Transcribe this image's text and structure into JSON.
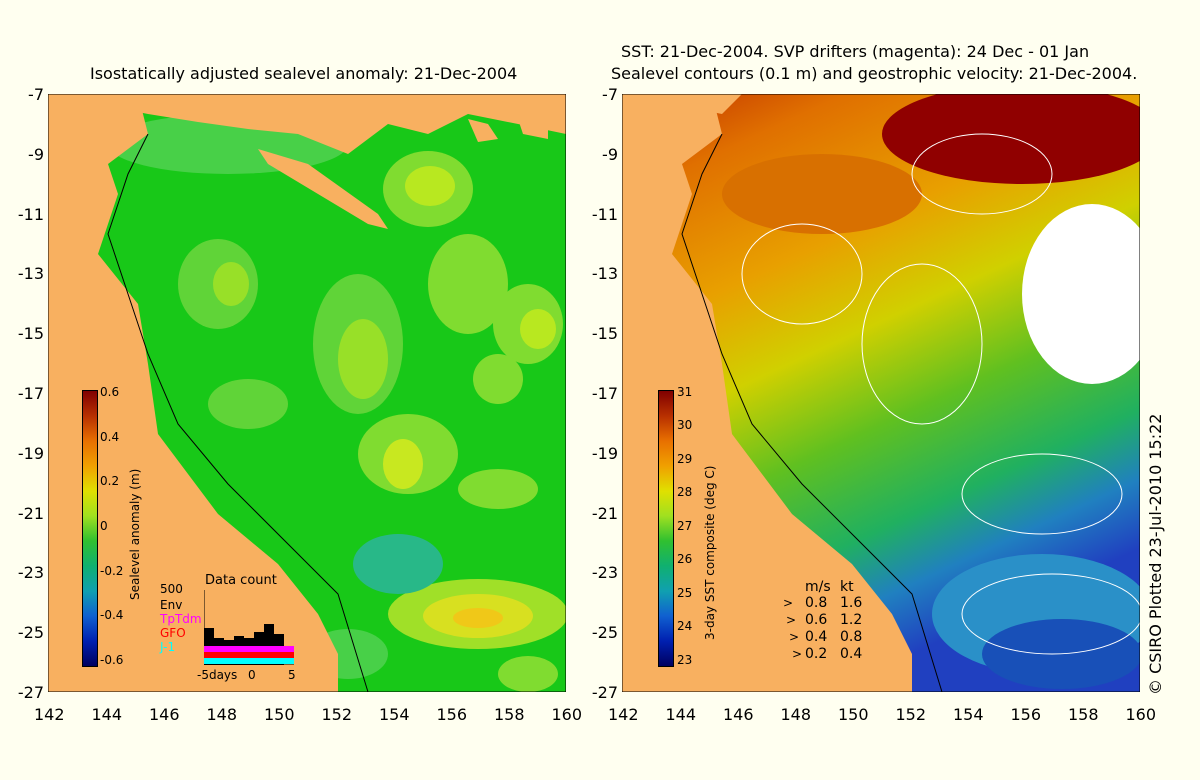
{
  "left_panel": {
    "title": "Isostatically adjusted sealevel anomaly: 21-Dec-2004",
    "y_ticks": [
      "-7",
      "-9",
      "-11",
      "-13",
      "-15",
      "-17",
      "-19",
      "-21",
      "-23",
      "-25",
      "-27"
    ],
    "x_ticks": [
      "142",
      "144",
      "146",
      "148",
      "150",
      "152",
      "154",
      "156",
      "158",
      "160"
    ],
    "colorbar": {
      "title": "Sealevel anomaly (m)",
      "labels": [
        "0.6",
        "0.4",
        "0.2",
        "0",
        "-0.2",
        "-0.4",
        "-0.6"
      ]
    },
    "data_count": {
      "title": "Data count",
      "scale_label": "500",
      "legend": [
        {
          "label": "Env",
          "color": "#000000"
        },
        {
          "label": "TpTdm",
          "color": "#ff00ff"
        },
        {
          "label": "GFO",
          "color": "#ff0000"
        },
        {
          "label": "J-1",
          "color": "#00ffff"
        }
      ],
      "x_label": "-5days",
      "x_ticks": [
        "0",
        "5"
      ]
    }
  },
  "right_panel": {
    "title_line1": "SST: 21-Dec-2004. SVP drifters (magenta): 24 Dec - 01 Jan",
    "title_line2": "Sealevel contours (0.1 m) and geostrophic velocity: 21-Dec-2004.",
    "y_ticks": [
      "-7",
      "-9",
      "-11",
      "-13",
      "-15",
      "-17",
      "-19",
      "-21",
      "-23",
      "-25",
      "-27"
    ],
    "x_ticks": [
      "142",
      "144",
      "146",
      "148",
      "150",
      "152",
      "154",
      "156",
      "158",
      "160"
    ],
    "colorbar": {
      "title": "3-day SST composite (deg C)",
      "labels": [
        "31",
        "30",
        "29",
        "28",
        "27",
        "26",
        "25",
        "24",
        "23"
      ]
    },
    "velocity_legend": {
      "header_ms": "m/s",
      "header_kt": "kt",
      "rows": [
        {
          "ms": "0.8",
          "kt": "1.6"
        },
        {
          "ms": "0.6",
          "kt": "1.2"
        },
        {
          "ms": "0.4",
          "kt": "0.8"
        },
        {
          "ms": "0.2",
          "kt": "0.4"
        }
      ]
    }
  },
  "credit": "© CSIRO Plotted 23-Jul-2010 15:22",
  "colors": {
    "land": "#f8b060",
    "background": "#fffff0"
  }
}
